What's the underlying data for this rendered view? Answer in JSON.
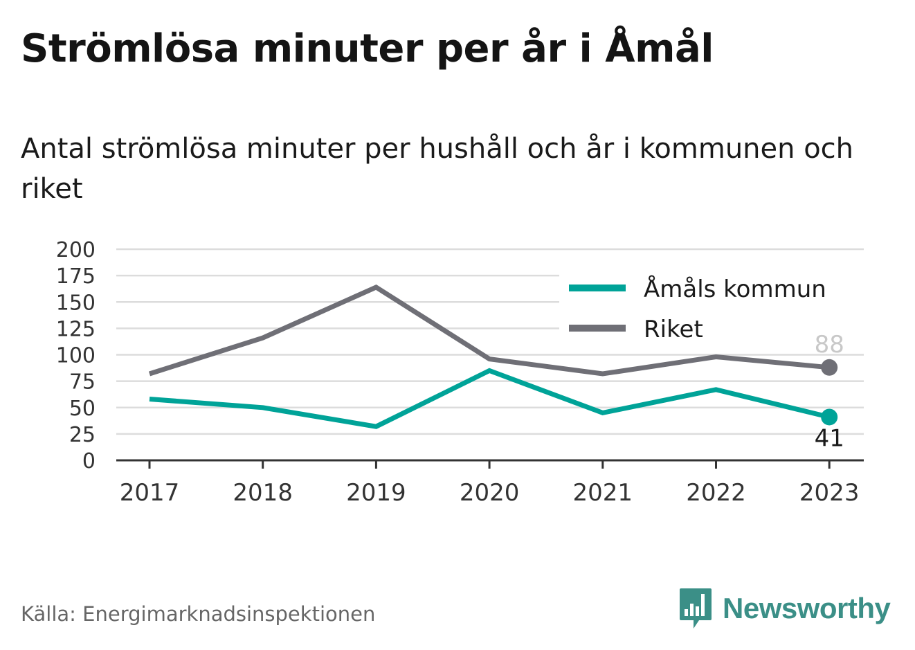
{
  "header": {
    "title": "Strömlösa minuter per år i Åmål",
    "subtitle": "Antal strömlösa minuter per hushåll och år i kommunen och riket"
  },
  "footer": {
    "source": "Källa: Energimarknadsinspektionen",
    "brand": "Newsworthy",
    "brand_icon": "newsworthy-logo-icon"
  },
  "colors": {
    "amal": "#00a398",
    "riket": "#6f6f76",
    "grid": "#dcdcdc",
    "axis": "#333333",
    "brand": "#3b8f87"
  },
  "chart_data": {
    "type": "line",
    "x": [
      "2017",
      "2018",
      "2019",
      "2020",
      "2021",
      "2022",
      "2023"
    ],
    "series": [
      {
        "name": "Åmåls kommun",
        "values": [
          58,
          50,
          32,
          85,
          45,
          67,
          41
        ],
        "color": "#00a398",
        "end_label": "41"
      },
      {
        "name": "Riket",
        "values": [
          82,
          116,
          164,
          96,
          82,
          98,
          88
        ],
        "color": "#6f6f76",
        "end_label": "88"
      }
    ],
    "ylim": [
      0,
      200
    ],
    "yticks": [
      "0",
      "25",
      "50",
      "75",
      "100",
      "125",
      "150",
      "175",
      "200"
    ],
    "grid": true,
    "legend_position": "top-right",
    "xlabel": "",
    "ylabel": ""
  }
}
